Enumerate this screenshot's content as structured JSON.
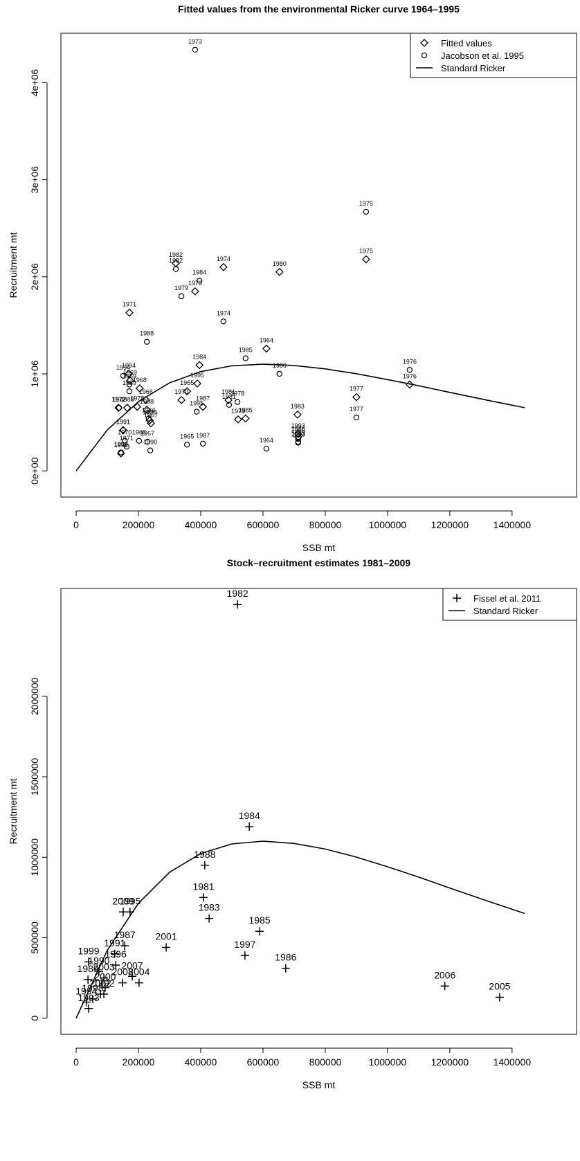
{
  "chart_data": [
    {
      "type": "scatter",
      "title": "Fitted values from the environmental Ricker curve 1964–1995",
      "x_label": "SSB mt",
      "y_label": "Recruitment mt",
      "xlim": [
        -49000,
        1607000
      ],
      "ylim": [
        -270000,
        4510000
      ],
      "xticks": [
        0,
        200000,
        400000,
        600000,
        800000,
        1000000,
        1200000,
        1400000
      ],
      "yticks": [
        {
          "value": 0,
          "label": "0e+00"
        },
        {
          "value": 1000000,
          "label": "1e+06"
        },
        {
          "value": 2000000,
          "label": "2e+06"
        },
        {
          "value": 3000000,
          "label": "3e+06"
        },
        {
          "value": 4000000,
          "label": "4e+06"
        }
      ],
      "legend": "top-right",
      "series": [
        {
          "name": "Fitted values",
          "marker": "diamond",
          "color": "#000000",
          "labels": [
            "1971",
            "1982",
            "1973",
            "1974",
            "1980",
            "1975",
            "1964",
            "1984",
            "1995",
            "1965",
            "1970",
            "1987",
            "1981",
            "1979",
            "1985",
            "1983",
            "1977",
            "1976",
            "1986",
            "1993",
            "1994",
            "1969",
            "1968",
            "1972",
            "1989",
            "1978",
            "1966",
            "1988",
            "1990",
            "1967",
            "1991",
            "1992"
          ],
          "x": [
            171000,
            320000,
            382000,
            473000,
            653000,
            931000,
            611000,
            396000,
            389000,
            356000,
            338000,
            407000,
            489000,
            520000,
            544000,
            711000,
            900000,
            1071000,
            713000,
            713000,
            169000,
            173000,
            204000,
            136000,
            164000,
            196000,
            224000,
            227000,
            236000,
            240000,
            151000,
            144000
          ],
          "values": [
            1630000,
            2140000,
            1850000,
            2100000,
            2050000,
            2180000,
            1260000,
            1090000,
            900000,
            820000,
            730000,
            660000,
            730000,
            530000,
            540000,
            580000,
            760000,
            890000,
            350000,
            380000,
            1000000,
            930000,
            850000,
            650000,
            650000,
            660000,
            730000,
            630000,
            520000,
            490000,
            420000,
            180000
          ]
        },
        {
          "name": "Jacobson et al. 1995",
          "marker": "circle",
          "color": "#000000",
          "labels": [
            "1973",
            "1975",
            "1982",
            "1984",
            "1979",
            "1974",
            "1988",
            "1985",
            "1980",
            "1976",
            "1977",
            "1978",
            "1981",
            "1995",
            "1965",
            "1987",
            "1964",
            "1983",
            "1986",
            "1990",
            "1994",
            "1969",
            "1989",
            "1972",
            "1966",
            "1967",
            "1968",
            "1970",
            "1971",
            "1991",
            "1992",
            "1993"
          ],
          "x": [
            382000,
            931000,
            320000,
            396000,
            338000,
            473000,
            227000,
            544000,
            653000,
            1071000,
            900000,
            518000,
            491000,
            387000,
            356000,
            407000,
            611000,
            713000,
            713000,
            238000,
            151000,
            171000,
            171000,
            138000,
            233000,
            229000,
            202000,
            156000,
            162000,
            151000,
            144000,
            713000
          ],
          "values": [
            4340000,
            2670000,
            2080000,
            1960000,
            1800000,
            1540000,
            1330000,
            1160000,
            1000000,
            1040000,
            550000,
            710000,
            680000,
            610000,
            270000,
            280000,
            230000,
            290000,
            330000,
            210000,
            980000,
            890000,
            820000,
            650000,
            540000,
            300000,
            310000,
            310000,
            250000,
            420000,
            190000,
            300000
          ]
        },
        {
          "name": "Standard Ricker",
          "marker": "line",
          "color": "#000000",
          "x": [
            0,
            100000,
            200000,
            300000,
            400000,
            500000,
            600000,
            700000,
            800000,
            900000,
            1000000,
            1100000,
            1200000,
            1300000,
            1400000,
            1440000
          ],
          "values": [
            0,
            422000,
            714000,
            907000,
            1023000,
            1083000,
            1100000,
            1086000,
            1051000,
            1001000,
            941000,
            877000,
            809000,
            742000,
            677000,
            651000
          ]
        }
      ]
    },
    {
      "type": "scatter",
      "title": "Stock–recruitment estimates 1981–2009",
      "x_label": "SSB mt",
      "y_label": "Recruitment mt",
      "xlim": [
        -49000,
        1607000
      ],
      "ylim": [
        -100000,
        2670000
      ],
      "xticks": [
        0,
        200000,
        400000,
        600000,
        800000,
        1000000,
        1200000,
        1400000
      ],
      "yticks": [
        0,
        500000,
        1000000,
        1500000,
        2000000
      ],
      "legend": "top-right",
      "series": [
        {
          "name": "Fissel et al. 2011",
          "marker": "plus",
          "color": "#000000",
          "labels": [
            "1982",
            "1984",
            "1988",
            "1981",
            "1983",
            "1985",
            "1997",
            "1986",
            "2006",
            "2005",
            "2001",
            "2009",
            "1995",
            "1987",
            "1999",
            "1996",
            "1990",
            "2007",
            "2004",
            "1989",
            "2003",
            "2008",
            "2000",
            "1992",
            "1998",
            "1994",
            "1993",
            "2002",
            "1991"
          ],
          "x": [
            518000,
            556000,
            413000,
            409000,
            427000,
            589000,
            542000,
            673000,
            1184000,
            1360000,
            289000,
            151000,
            173000,
            156000,
            40000,
            127000,
            73000,
            180000,
            202000,
            38000,
            89000,
            149000,
            93000,
            89000,
            53000,
            33000,
            40000,
            78000,
            124000
          ],
          "values": [
            2570000,
            1190000,
            950000,
            750000,
            620000,
            540000,
            390000,
            310000,
            200000,
            130000,
            440000,
            660000,
            660000,
            450000,
            350000,
            330000,
            290000,
            260000,
            220000,
            240000,
            250000,
            220000,
            190000,
            150000,
            120000,
            100000,
            60000,
            150000,
            400000
          ]
        },
        {
          "name": "Standard Ricker",
          "marker": "line",
          "color": "#000000",
          "x": [
            0,
            100000,
            200000,
            300000,
            400000,
            500000,
            600000,
            700000,
            800000,
            900000,
            1000000,
            1100000,
            1200000,
            1300000,
            1400000,
            1440000
          ],
          "values": [
            0,
            422000,
            714000,
            907000,
            1023000,
            1083000,
            1100000,
            1086000,
            1051000,
            1001000,
            941000,
            877000,
            809000,
            742000,
            677000,
            651000
          ]
        }
      ]
    }
  ]
}
